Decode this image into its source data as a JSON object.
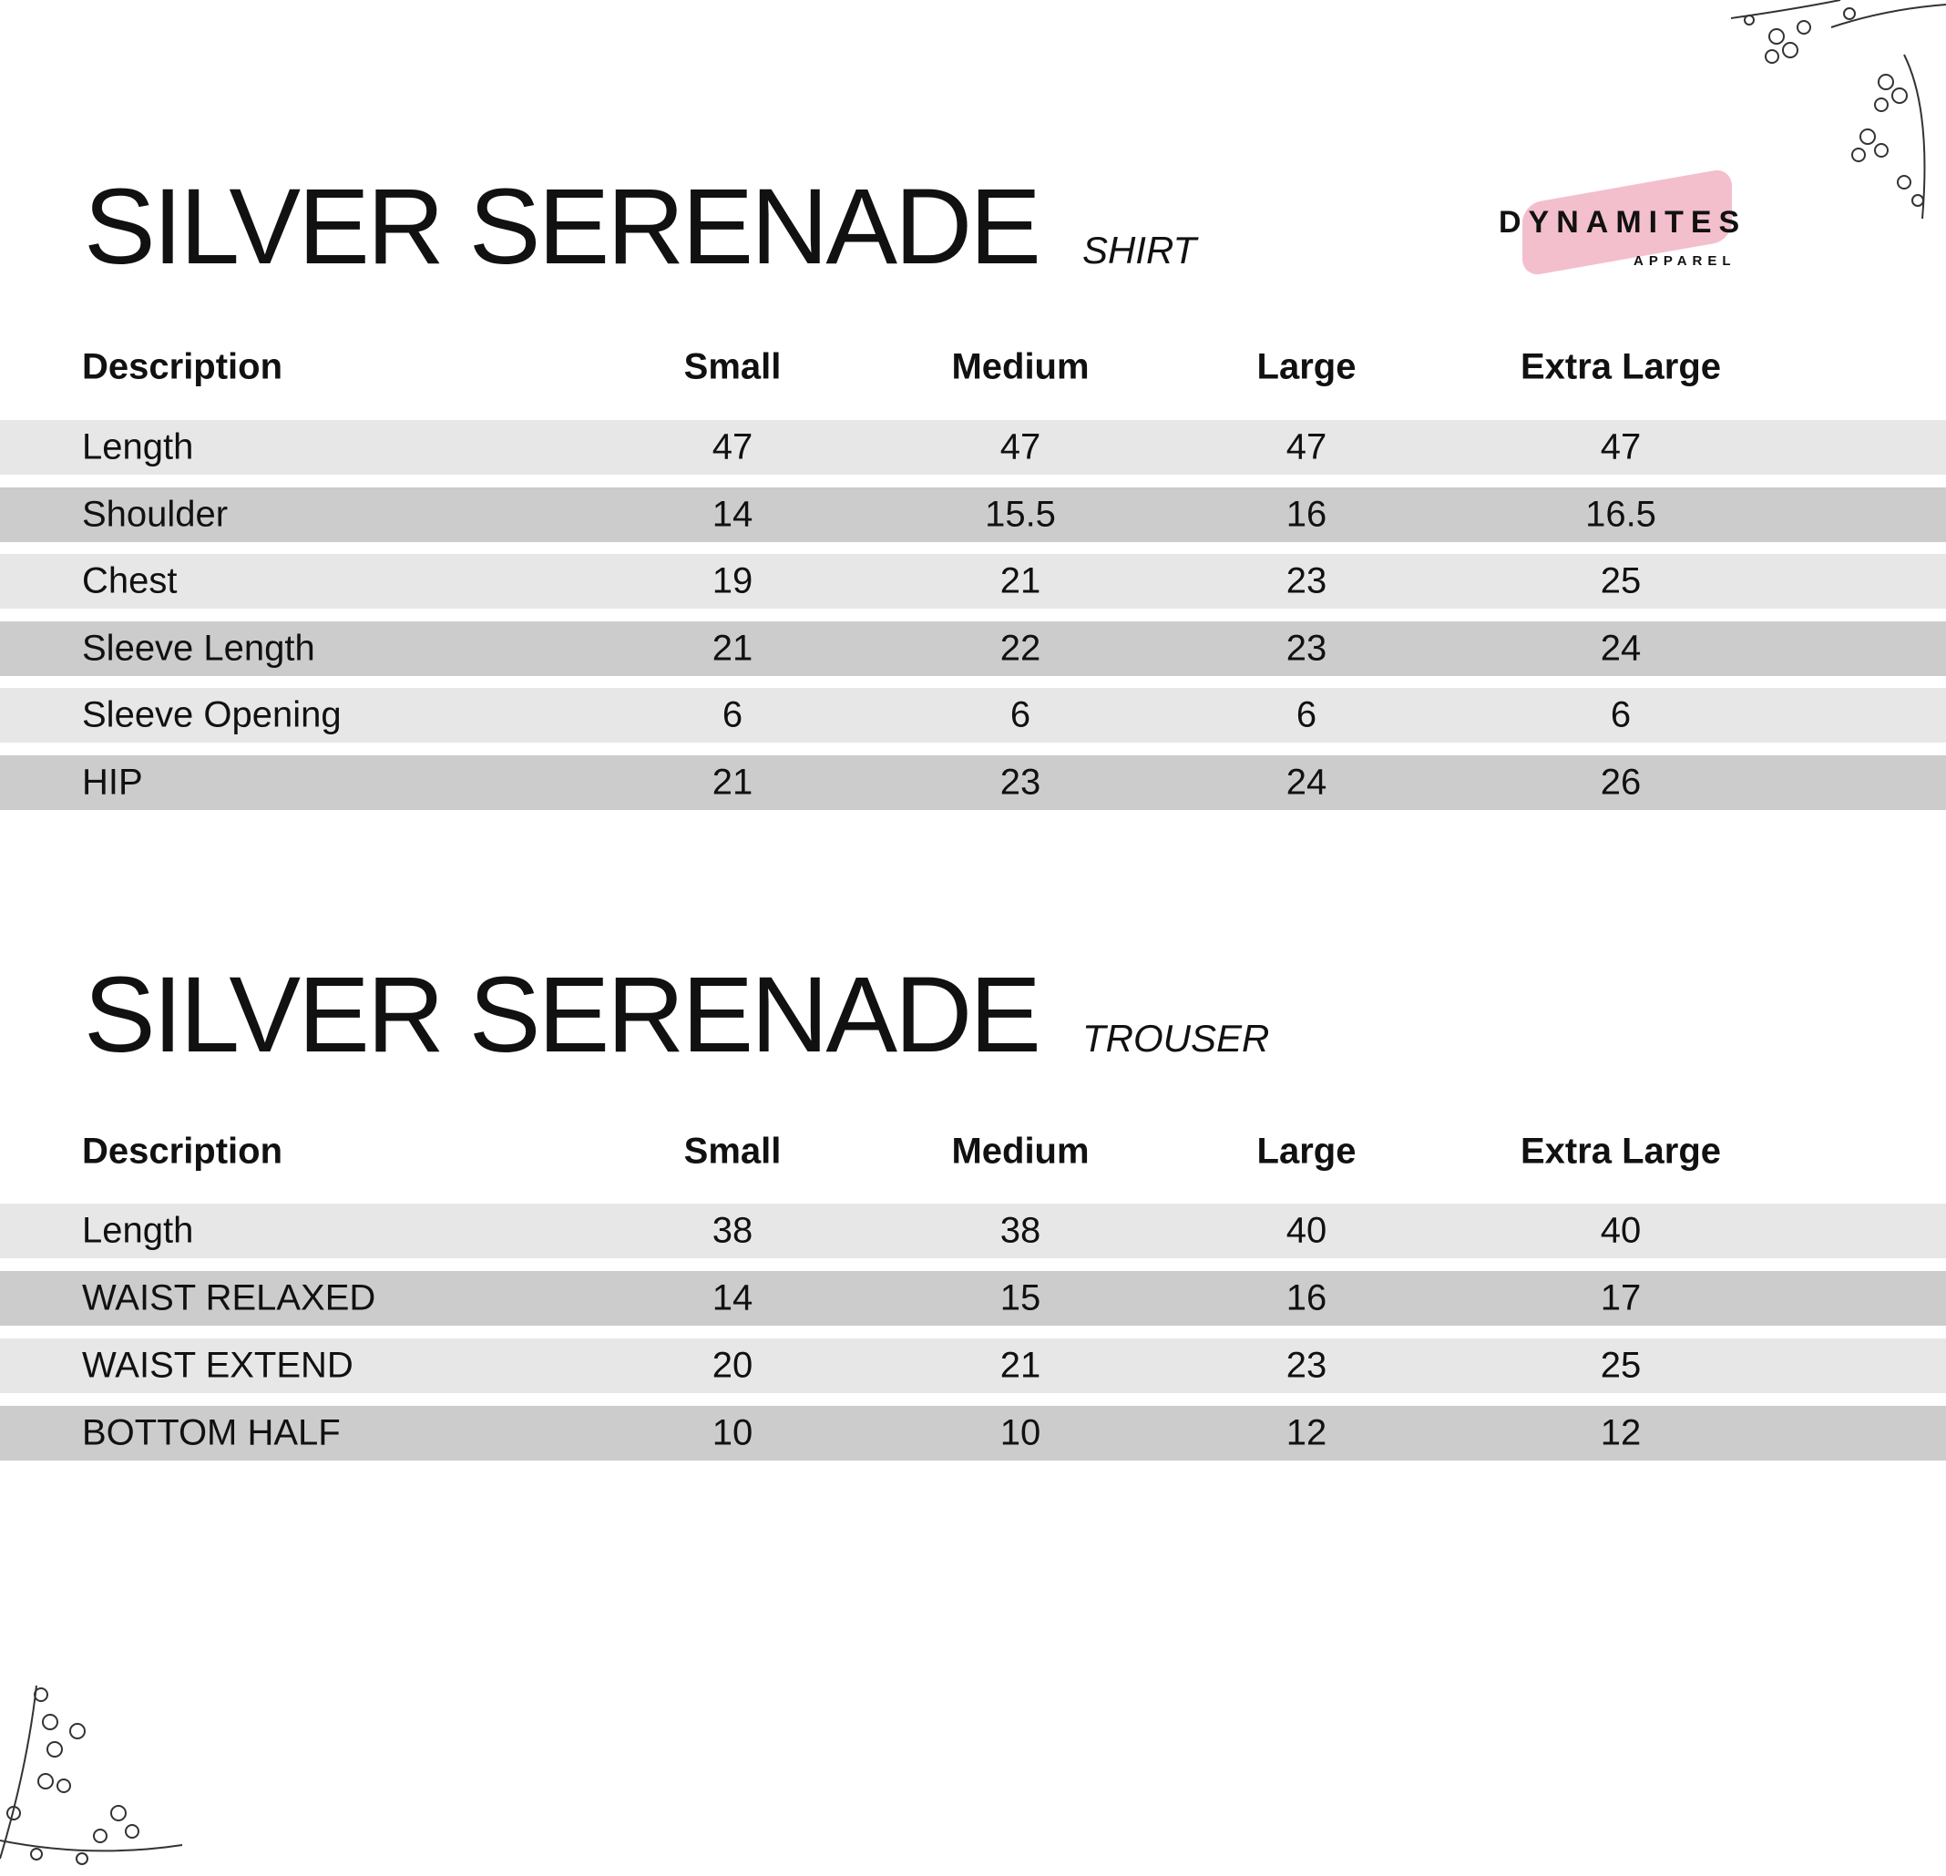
{
  "brand": {
    "name": "DYNAMITES",
    "tagline": "APPAREL",
    "accent": "#f2b8c8"
  },
  "columns": [
    "Description",
    "Small",
    "Medium",
    "Large",
    "Extra Large"
  ],
  "shirt": {
    "title": "SILVER SERENADE",
    "subtitle": "SHIRT",
    "rows": [
      [
        "Length",
        "47",
        "47",
        "47",
        "47"
      ],
      [
        "Shoulder",
        "14",
        "15.5",
        "16",
        "16.5"
      ],
      [
        "Chest",
        "19",
        "21",
        "23",
        "25"
      ],
      [
        "Sleeve Length",
        "21",
        "22",
        "23",
        "24"
      ],
      [
        "Sleeve Opening",
        "6",
        "6",
        "6",
        "6"
      ],
      [
        "HIP",
        "21",
        "23",
        "24",
        "26"
      ]
    ]
  },
  "trouser": {
    "title": "SILVER SERENADE",
    "subtitle": "TROUSER",
    "rows": [
      [
        "Length",
        "38",
        "38",
        "40",
        "40"
      ],
      [
        "WAIST RELAXED",
        "14",
        "15",
        "16",
        "17"
      ],
      [
        "WAIST EXTEND",
        "20",
        "21",
        "23",
        "25"
      ],
      [
        "BOTTOM HALF",
        "10",
        "10",
        "12",
        "12"
      ]
    ]
  },
  "decorations": [
    "floral-corner-top-right",
    "floral-corner-bottom-left"
  ]
}
